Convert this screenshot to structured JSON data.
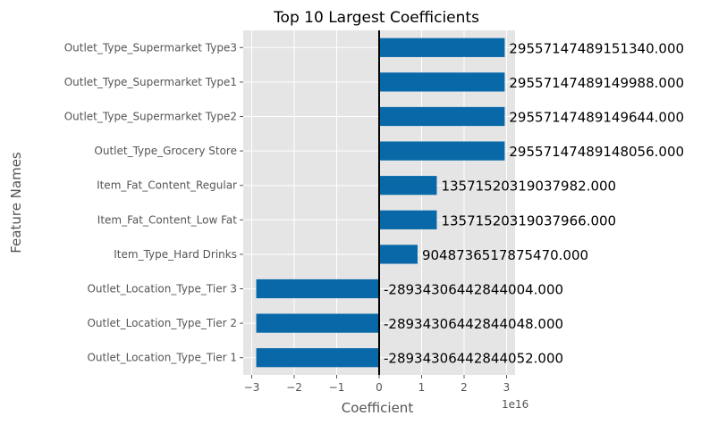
{
  "chart_data": {
    "type": "bar",
    "orientation": "horizontal",
    "title": "Top 10 Largest Coefficients",
    "xlabel": "Coefficient",
    "ylabel": "Feature Names",
    "x_offset_label": "1e16",
    "xlim": [
      -3.2e+16,
      3.2e+16
    ],
    "x_ticks": [
      -3e+16,
      -2e+16,
      -1e+16,
      0,
      1e+16,
      2e+16,
      3e+16
    ],
    "x_tick_labels": [
      "−3",
      "−2",
      "−1",
      "0",
      "1",
      "2",
      "3"
    ],
    "grid": true,
    "zero_line": true,
    "colors": {
      "bar": "#0868a8",
      "background": "#e5e5e5",
      "grid": "#ffffff",
      "zero_line": "#000000"
    },
    "categories": [
      "Outlet_Type_Supermarket Type3",
      "Outlet_Type_Supermarket Type1",
      "Outlet_Type_Supermarket Type2",
      "Outlet_Type_Grocery Store",
      "Item_Fat_Content_Regular",
      "Item_Fat_Content_Low Fat",
      "Item_Type_Hard Drinks",
      "Outlet_Location_Type_Tier 3",
      "Outlet_Location_Type_Tier 2",
      "Outlet_Location_Type_Tier 1"
    ],
    "values": [
      29557147489151340,
      29557147489149988,
      29557147489149644,
      29557147489148056,
      13571520319037982,
      13571520319037966,
      9048736517875470,
      -28934306442844004,
      -28934306442844048,
      -28934306442844052
    ],
    "value_labels": [
      "29557147489151340.000",
      "29557147489149988.000",
      "29557147489149644.000",
      "29557147489148056.000",
      "13571520319037982.000",
      "13571520319037966.000",
      "9048736517875470.000",
      "-28934306442844004.000",
      "-28934306442844048.000",
      "-28934306442844052.000"
    ]
  }
}
